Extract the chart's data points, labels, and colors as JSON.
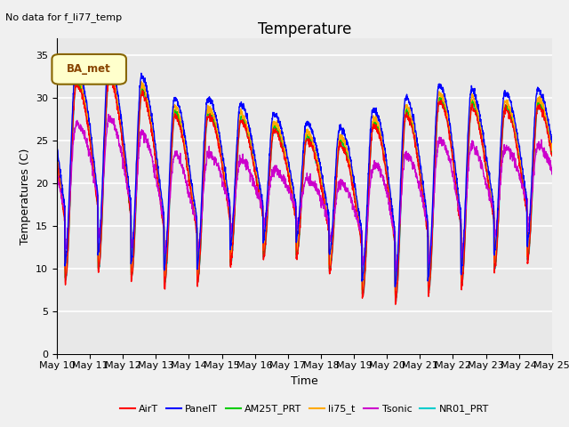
{
  "title": "Temperature",
  "xlabel": "Time",
  "ylabel": "Temperatures (C)",
  "annotation": "No data for f_li77_temp",
  "legend_label": "BA_met",
  "ylim": [
    0,
    37
  ],
  "yticks": [
    0,
    5,
    10,
    15,
    20,
    25,
    30,
    35
  ],
  "series": {
    "AirT": {
      "color": "#ff0000",
      "lw": 1.0
    },
    "PanelT": {
      "color": "#0000ff",
      "lw": 1.0
    },
    "AM25T_PRT": {
      "color": "#00cc00",
      "lw": 1.0
    },
    "li75_t": {
      "color": "#ffaa00",
      "lw": 1.0
    },
    "Tsonic": {
      "color": "#cc00cc",
      "lw": 1.0
    },
    "NR01_PRT": {
      "color": "#00cccc",
      "lw": 1.2
    }
  },
  "xticklabels": [
    "May 10",
    "May 11",
    "May 12",
    "May 13",
    "May 14",
    "May 15",
    "May 16",
    "May 17",
    "May 18",
    "May 19",
    "May 20",
    "May 21",
    "May 22",
    "May 23",
    "May 24",
    "May 25"
  ],
  "day_peaks": [
    30.5,
    33.0,
    32.5,
    30.0,
    27.5,
    29.0,
    27.0,
    26.5,
    25.0,
    25.0,
    28.5,
    28.5,
    31.0,
    28.5,
    29.5,
    29.5
  ],
  "day_mins": [
    8.5,
    10.5,
    9.5,
    8.5,
    8.0,
    10.5,
    11.5,
    12.0,
    11.0,
    7.5,
    6.0,
    7.5,
    7.5,
    10.0,
    11.0,
    12.0
  ],
  "bg_color": "#e8e8e8",
  "grid_color": "#ffffff",
  "title_fontsize": 12,
  "axis_fontsize": 9,
  "tick_fontsize": 8,
  "fig_width": 6.4,
  "fig_height": 4.8,
  "dpi": 100
}
